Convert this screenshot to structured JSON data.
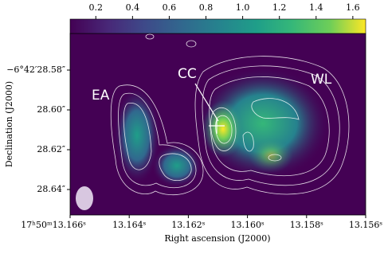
{
  "chart_data": {
    "type": "image",
    "xlabel": "Right ascension (J2000)",
    "ylabel": "Declination (J2000)",
    "xlim": [
      13.166,
      13.156
    ],
    "xticks": [
      {
        "value": 13.166,
        "label": "17ʰ50ᵐ13.166ˢ"
      },
      {
        "value": 13.164,
        "label": "13.164ˢ"
      },
      {
        "value": 13.162,
        "label": "13.162ˢ"
      },
      {
        "value": 13.16,
        "label": "13.160ˢ"
      },
      {
        "value": 13.158,
        "label": "13.158ˢ"
      },
      {
        "value": 13.156,
        "label": "13.156ˢ"
      }
    ],
    "ylim": [
      28.5616,
      28.6528
    ],
    "yticks": [
      {
        "value": 28.58,
        "label": "−6°42′28.58″"
      },
      {
        "value": 28.6,
        "label": "28.60″"
      },
      {
        "value": 28.62,
        "label": "28.62″"
      },
      {
        "value": 28.64,
        "label": "28.64″"
      }
    ],
    "colorbar": {
      "clim": [
        0.06,
        1.67
      ],
      "ticks": [
        0.2,
        0.4,
        0.6,
        0.8,
        {
          "value": 1.0,
          "label": "1.0"
        },
        1.2,
        1.4,
        1.6
      ]
    },
    "annotations": [
      "EA",
      "CC",
      "WL"
    ]
  }
}
